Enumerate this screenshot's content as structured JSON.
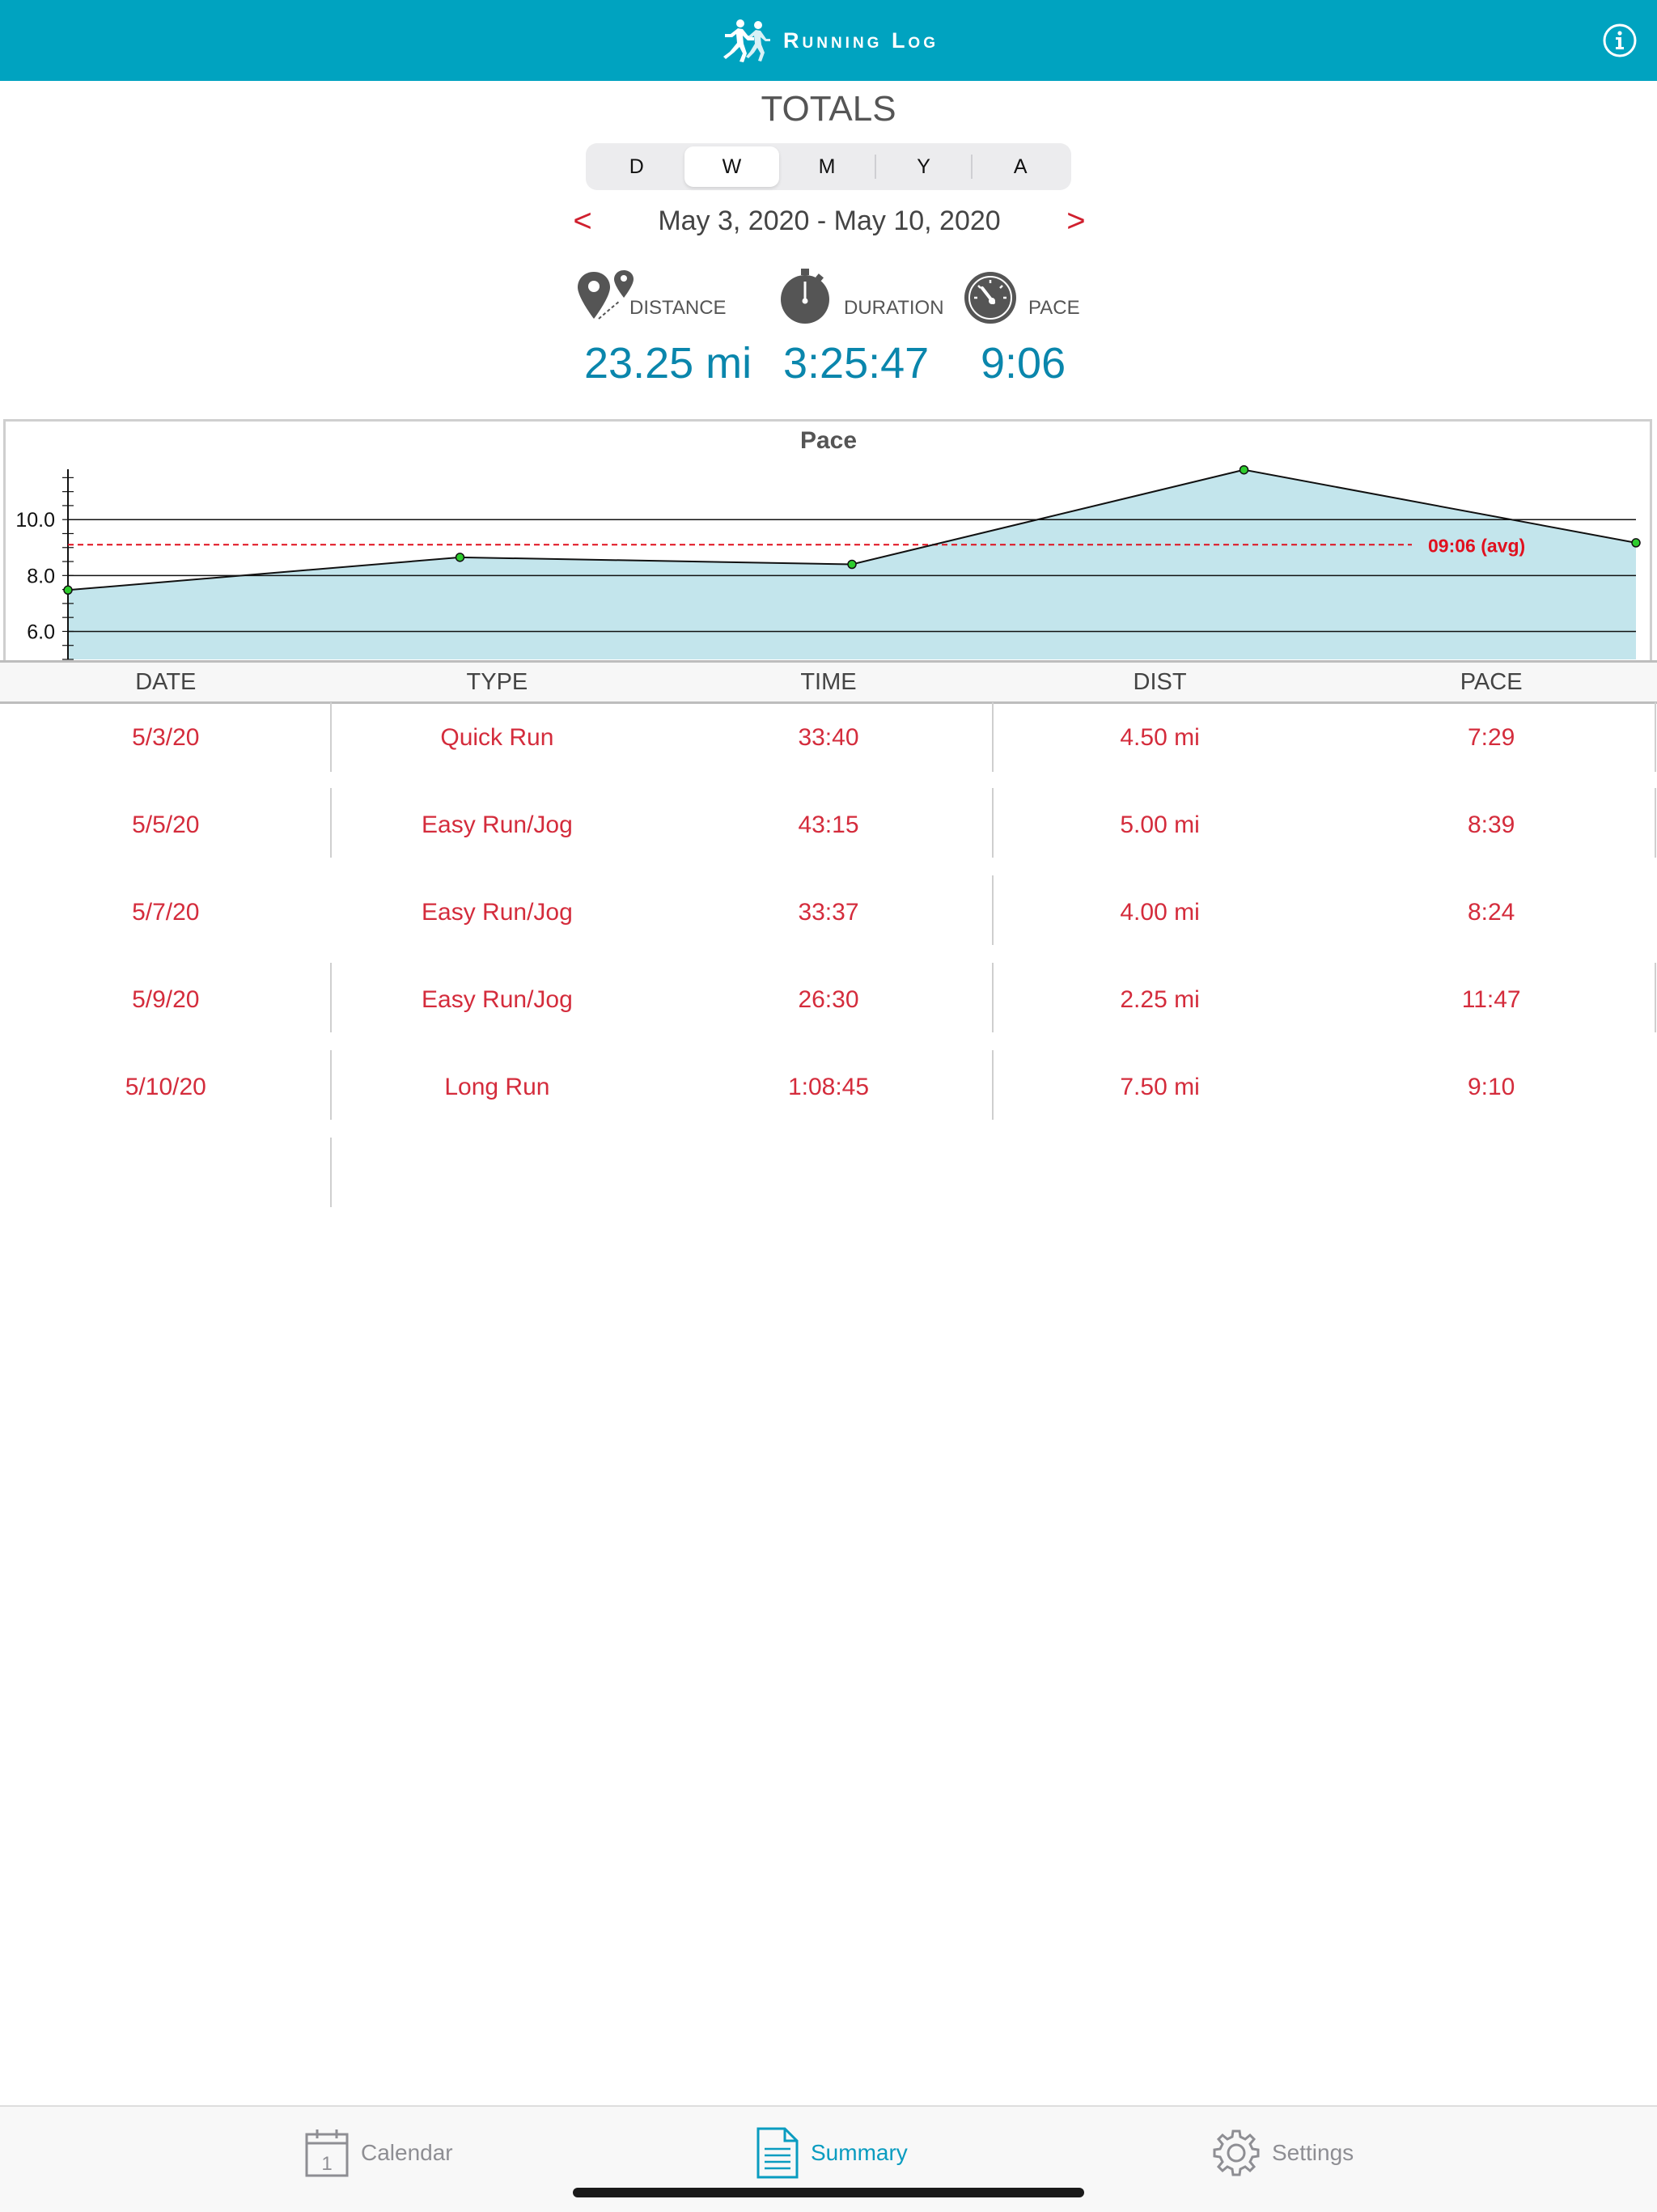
{
  "app": {
    "title": "Running Log"
  },
  "totals": {
    "title": "TOTALS",
    "segments": [
      "D",
      "W",
      "M",
      "Y",
      "A"
    ],
    "active_segment": "W",
    "date_range": "May 3, 2020 - May 10, 2020",
    "prev": "<",
    "next": ">",
    "stats": {
      "distance": {
        "label": "DISTANCE",
        "value": "23.25 mi"
      },
      "duration": {
        "label": "DURATION",
        "value": "3:25:47"
      },
      "pace": {
        "label": "PACE",
        "value": "9:06"
      }
    }
  },
  "chart_data": {
    "type": "area",
    "title": "Pace",
    "x": [
      "5/3/20",
      "5/5/20",
      "5/7/20",
      "5/9/20",
      "5/10/20"
    ],
    "series": [
      {
        "values": [
          7.48,
          8.65,
          8.4,
          11.78,
          9.17
        ]
      }
    ],
    "y_ticks": [
      "10.0",
      "8.0",
      "6.0"
    ],
    "y_tick_values": [
      10,
      8,
      6
    ],
    "ylim": [
      5.0,
      11.8
    ],
    "average": {
      "value": 9.1,
      "label": "09:06 (avg)",
      "color": "#e0101e"
    },
    "fill_color": "#b9e1e9",
    "grid": true
  },
  "table": {
    "headers": [
      "DATE",
      "TYPE",
      "TIME",
      "DIST",
      "PACE"
    ],
    "rows": [
      [
        "5/3/20",
        "Quick Run",
        "33:40",
        "4.50 mi",
        "7:29"
      ],
      [
        "5/5/20",
        "Easy Run/Jog",
        "43:15",
        "5.00 mi",
        "8:39"
      ],
      [
        "5/7/20",
        "Easy Run/Jog",
        "33:37",
        "4.00 mi",
        "8:24"
      ],
      [
        "5/9/20",
        "Easy Run/Jog",
        "26:30",
        "2.25 mi",
        "11:47"
      ],
      [
        "5/10/20",
        "Long Run",
        "1:08:45",
        "7.50 mi",
        "9:10"
      ]
    ]
  },
  "tabbar": {
    "items": [
      {
        "label": "Calendar",
        "icon": "calendar-icon",
        "active": false
      },
      {
        "label": "Summary",
        "icon": "document-icon",
        "active": true
      },
      {
        "label": "Settings",
        "icon": "gear-icon",
        "active": false
      }
    ],
    "calendar_day": "1"
  },
  "colors": {
    "accent": "#00a3c0",
    "value_blue": "#0a86ac",
    "table_red": "#d42c3c",
    "tab_active": "#0a9cc0",
    "tab_inactive": "#8e8e93"
  }
}
